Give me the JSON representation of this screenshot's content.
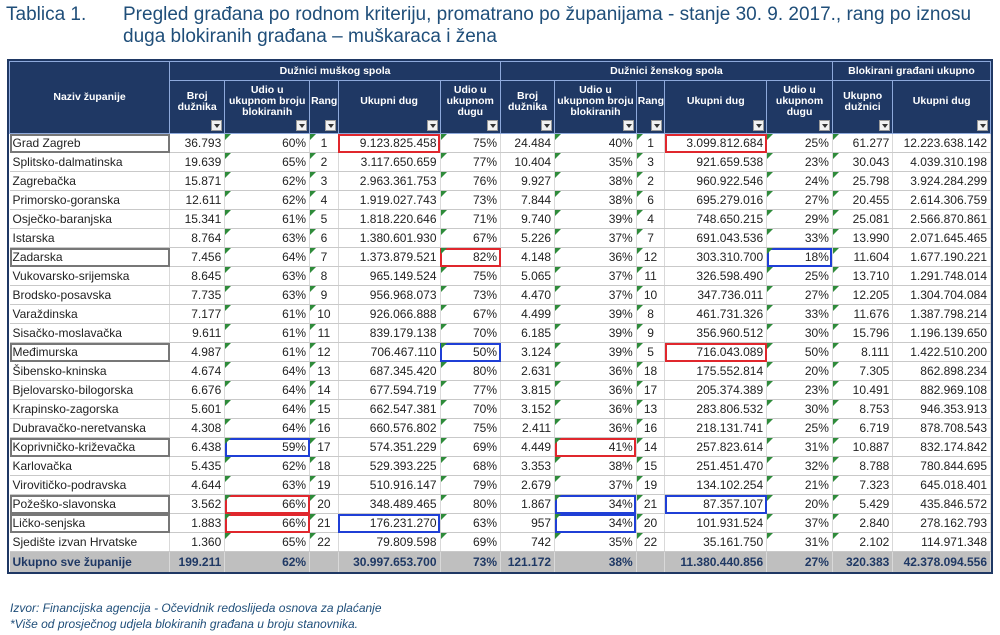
{
  "title": {
    "label": "Tablica 1.",
    "text": "Pregled građana po rodnom kriteriju, promatrano po županijama - stanje 30. 9. 2017., rang po iznosu duga blokiranih građana – muškaraca i žena"
  },
  "headers": {
    "county": "Naziv županije",
    "group_male": "Dužnici muškog spola",
    "group_female": "Dužnici ženskog spola",
    "group_total": "Blokirani građani ukupno",
    "count": "Broj dužnika",
    "share_count": "Udio u ukupnom broju blokiranih",
    "rank": "Rang",
    "total_debt": "Ukupni dug",
    "share_debt": "Udio u ukupnom dugu",
    "total_debtors": "Ukupno dužnici",
    "total_debt_all": "Ukupni dug"
  },
  "rows": [
    [
      "Grad Zagreb",
      "36.793",
      "60%",
      "1",
      "9.123.825.458",
      "75%",
      "24.484",
      "40%",
      "1",
      "3.099.812.684",
      "25%",
      "61.277",
      "12.223.638.142"
    ],
    [
      "Splitsko-dalmatinska",
      "19.639",
      "65%",
      "2",
      "3.117.650.659",
      "77%",
      "10.404",
      "35%",
      "3",
      "921.659.538",
      "23%",
      "30.043",
      "4.039.310.198"
    ],
    [
      "Zagrebačka",
      "15.871",
      "62%",
      "3",
      "2.963.361.753",
      "76%",
      "9.927",
      "38%",
      "2",
      "960.922.546",
      "24%",
      "25.798",
      "3.924.284.299"
    ],
    [
      "Primorsko-goranska",
      "12.611",
      "62%",
      "4",
      "1.919.027.743",
      "73%",
      "7.844",
      "38%",
      "6",
      "695.279.016",
      "27%",
      "20.455",
      "2.614.306.759"
    ],
    [
      "Osječko-baranjska",
      "15.341",
      "61%",
      "5",
      "1.818.220.646",
      "71%",
      "9.740",
      "39%",
      "4",
      "748.650.215",
      "29%",
      "25.081",
      "2.566.870.861"
    ],
    [
      "Istarska",
      "8.764",
      "63%",
      "6",
      "1.380.601.930",
      "67%",
      "5.226",
      "37%",
      "7",
      "691.043.536",
      "33%",
      "13.990",
      "2.071.645.465"
    ],
    [
      "Zadarska",
      "7.456",
      "64%",
      "7",
      "1.373.879.521",
      "82%",
      "4.148",
      "36%",
      "12",
      "303.310.700",
      "18%",
      "11.604",
      "1.677.190.221"
    ],
    [
      "Vukovarsko-srijemska",
      "8.645",
      "63%",
      "8",
      "965.149.524",
      "75%",
      "5.065",
      "37%",
      "11",
      "326.598.490",
      "25%",
      "13.710",
      "1.291.748.014"
    ],
    [
      "Brodsko-posavska",
      "7.735",
      "63%",
      "9",
      "956.968.073",
      "73%",
      "4.470",
      "37%",
      "10",
      "347.736.011",
      "27%",
      "12.205",
      "1.304.704.084"
    ],
    [
      "Varaždinska",
      "7.177",
      "61%",
      "10",
      "926.066.888",
      "67%",
      "4.499",
      "39%",
      "8",
      "461.731.326",
      "33%",
      "11.676",
      "1.387.798.214"
    ],
    [
      "Sisačko-moslavačka",
      "9.611",
      "61%",
      "11",
      "839.179.138",
      "70%",
      "6.185",
      "39%",
      "9",
      "356.960.512",
      "30%",
      "15.796",
      "1.196.139.650"
    ],
    [
      "Međimurska",
      "4.987",
      "61%",
      "12",
      "706.467.110",
      "50%",
      "3.124",
      "39%",
      "5",
      "716.043.089",
      "50%",
      "8.111",
      "1.422.510.200"
    ],
    [
      "Šibensko-kninska",
      "4.674",
      "64%",
      "13",
      "687.345.420",
      "80%",
      "2.631",
      "36%",
      "18",
      "175.552.814",
      "20%",
      "7.305",
      "862.898.234"
    ],
    [
      "Bjelovarsko-bilogorska",
      "6.676",
      "64%",
      "14",
      "677.594.719",
      "77%",
      "3.815",
      "36%",
      "17",
      "205.374.389",
      "23%",
      "10.491",
      "882.969.108"
    ],
    [
      "Krapinsko-zagorska",
      "5.601",
      "64%",
      "15",
      "662.547.381",
      "70%",
      "3.152",
      "36%",
      "13",
      "283.806.532",
      "30%",
      "8.753",
      "946.353.913"
    ],
    [
      "Dubravačko-neretvanska",
      "4.308",
      "64%",
      "16",
      "660.576.802",
      "75%",
      "2.411",
      "36%",
      "16",
      "218.131.741",
      "25%",
      "6.719",
      "878.708.543"
    ],
    [
      "Koprivničko-križevačka",
      "6.438",
      "59%",
      "17",
      "574.351.229",
      "69%",
      "4.449",
      "41%",
      "14",
      "257.823.614",
      "31%",
      "10.887",
      "832.174.842"
    ],
    [
      "Karlovačka",
      "5.435",
      "62%",
      "18",
      "529.393.225",
      "68%",
      "3.353",
      "38%",
      "15",
      "251.451.470",
      "32%",
      "8.788",
      "780.844.695"
    ],
    [
      "Virovitičko-podravska",
      "4.644",
      "63%",
      "19",
      "510.916.147",
      "79%",
      "2.679",
      "37%",
      "19",
      "134.102.254",
      "21%",
      "7.323",
      "645.018.401"
    ],
    [
      "Požeško-slavonska",
      "3.562",
      "66%",
      "20",
      "348.489.465",
      "80%",
      "1.867",
      "34%",
      "21",
      "87.357.107",
      "20%",
      "5.429",
      "435.846.572"
    ],
    [
      "Ličko-senjska",
      "1.883",
      "66%",
      "21",
      "176.231.270",
      "63%",
      "957",
      "34%",
      "20",
      "101.931.524",
      "37%",
      "2.840",
      "278.162.793"
    ],
    [
      "Sjedište izvan Hrvatske",
      "1.360",
      "65%",
      "22",
      "79.809.598",
      "69%",
      "742",
      "35%",
      "22",
      "35.161.750",
      "31%",
      "2.102",
      "114.971.348"
    ]
  ],
  "total": [
    "Ukupno sve županije",
    "199.211",
    "62%",
    "",
    "30.997.653.700",
    "73%",
    "121.172",
    "38%",
    "",
    "11.380.440.856",
    "27%",
    "320.383",
    "42.378.094.556"
  ],
  "highlights": {
    "red": [
      [
        0,
        4
      ],
      [
        0,
        9
      ],
      [
        6,
        5
      ],
      [
        11,
        9
      ],
      [
        16,
        7
      ],
      [
        19,
        2
      ],
      [
        20,
        2
      ]
    ],
    "blue": [
      [
        6,
        10
      ],
      [
        11,
        5
      ],
      [
        16,
        2
      ],
      [
        19,
        7
      ],
      [
        19,
        9
      ],
      [
        20,
        4
      ],
      [
        20,
        7
      ]
    ],
    "gray": [
      [
        0,
        0
      ],
      [
        6,
        0
      ],
      [
        11,
        0
      ],
      [
        16,
        0
      ],
      [
        19,
        0
      ],
      [
        20,
        0
      ]
    ]
  },
  "colors": {
    "header_bg": "#1f3864",
    "total_bg": "#bfbfbf",
    "red": "#e0272d",
    "blue": "#1f3fd6"
  },
  "footnotes": {
    "source": "Izvor: Financijska agencija - Očevidnik redoslijeda osnova za plaćanje",
    "note": "*Više od prosječnog udjela blokiranih građana u broju stanovnika."
  }
}
